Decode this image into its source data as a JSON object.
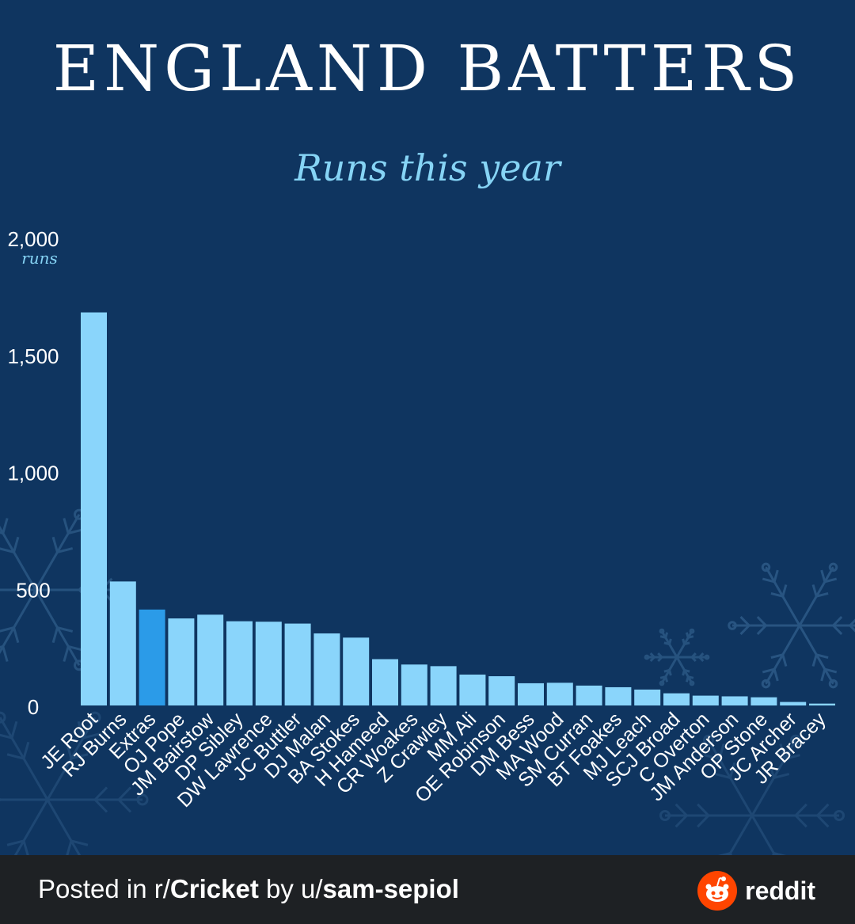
{
  "title": "ENGLAND BATTERS",
  "subtitle": "Runs this year",
  "footer": {
    "prefix": "Posted in r/",
    "subreddit": "Cricket",
    "middle": " by u/",
    "user": "sam-sepiol",
    "brand": "reddit"
  },
  "colors": {
    "background": "#0f3560",
    "bar": "#8ad5fb",
    "bar_highlight": "#2b9be8",
    "text": "#ffffff",
    "accent": "#86d4f5",
    "footer_bg": "#1e2124",
    "reddit_orange": "#ff4500"
  },
  "chart_data": {
    "type": "bar",
    "title": "ENGLAND BATTERS",
    "subtitle": "Runs this year",
    "ylabel": "runs",
    "ylim": [
      0,
      2000
    ],
    "yticks": [
      0,
      500,
      1000,
      1500,
      2000
    ],
    "ytick_labels": [
      "0",
      "500",
      "1,000",
      "1,500",
      "2,000"
    ],
    "grid": false,
    "highlight": "Extras",
    "categories": [
      "JE Root",
      "RJ Burns",
      "Extras",
      "OJ Pope",
      "JM Bairstow",
      "DP Sibley",
      "DW Lawrence",
      "JC Buttler",
      "DJ Malan",
      "BA Stokes",
      "H Hameed",
      "CR Woakes",
      "Z Crawley",
      "MM Ali",
      "OE Robinson",
      "DM Bess",
      "MA Wood",
      "SM Curran",
      "BT Foakes",
      "MJ Leach",
      "SCJ Broad",
      "C Overton",
      "JM Anderson",
      "OP Stone",
      "JC Archer",
      "JR Bracey"
    ],
    "values": [
      1680,
      530,
      410,
      372,
      388,
      360,
      358,
      350,
      308,
      290,
      198,
      175,
      168,
      132,
      125,
      95,
      97,
      85,
      78,
      68,
      52,
      42,
      39,
      35,
      15,
      8
    ]
  }
}
